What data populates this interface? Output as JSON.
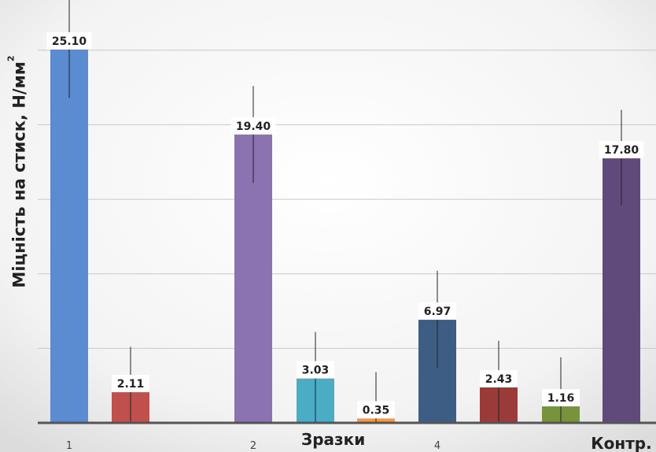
{
  "chart_data": {
    "type": "bar",
    "ylabel_main": "Міцність на стиск,  Н/мм",
    "ylabel_sup": "2",
    "xlabel": "Зразки",
    "ylim": [
      0,
      28
    ],
    "grid": true,
    "x_tick_labels": [
      "1",
      "2",
      "4",
      "Контр."
    ],
    "series": [
      {
        "category": "1",
        "value": 25.1,
        "label": "25.10",
        "color": "#5b8bd0"
      },
      {
        "category": "",
        "value": 2.11,
        "label": "2.11",
        "color": "#c0504d"
      },
      {
        "category": "2",
        "value": 19.4,
        "label": "19.40",
        "color": "#8b72b0"
      },
      {
        "category": "",
        "value": 3.03,
        "label": "3.03",
        "color": "#4bacc6"
      },
      {
        "category": "",
        "value": 0.35,
        "label": "0.35",
        "color": "#f79646"
      },
      {
        "category": "4",
        "value": 6.97,
        "label": "6.97",
        "color": "#3e5d84"
      },
      {
        "category": "",
        "value": 2.43,
        "label": "2.43",
        "color": "#9b3b39"
      },
      {
        "category": "",
        "value": 1.16,
        "label": "1.16",
        "color": "#77933c"
      },
      {
        "category": "Контр.",
        "value": 17.8,
        "label": "17.80",
        "color": "#604a7b"
      }
    ],
    "error_bars": [
      {
        "low": 21.8,
        "high": 28.5
      },
      {
        "low": 0.0,
        "high": 5.1
      },
      {
        "low": 16.1,
        "high": 22.6
      },
      {
        "low": 0.0,
        "high": 6.1
      },
      {
        "low": 0.0,
        "high": 3.4
      },
      {
        "low": 3.7,
        "high": 10.2
      },
      {
        "low": 0.0,
        "high": 5.5
      },
      {
        "low": 0.0,
        "high": 4.4
      },
      {
        "low": 14.6,
        "high": 21.0
      }
    ]
  }
}
